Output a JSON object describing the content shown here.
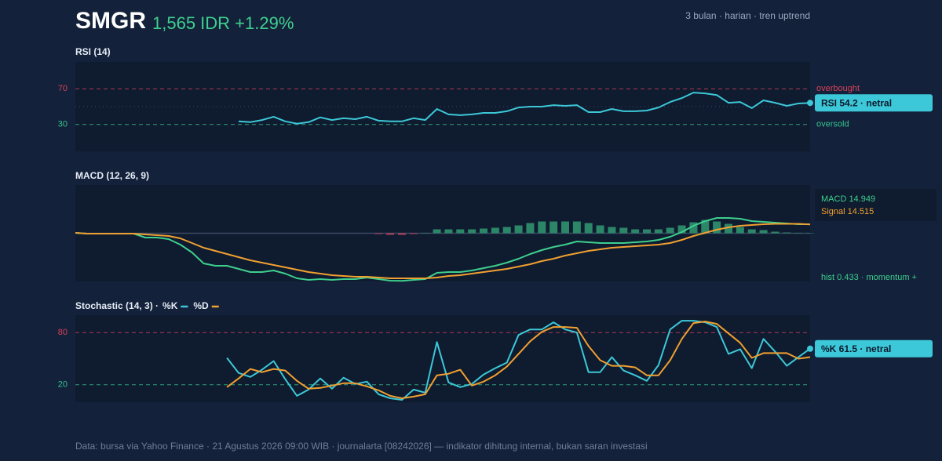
{
  "header": {
    "ticker": "SMGR",
    "quote": "1,565 IDR +1.29%",
    "meta": "3 bulan · harian · tren uptrend"
  },
  "chart_data": [
    {
      "type": "line",
      "title": "RSI (14)",
      "ylim": [
        0,
        100
      ],
      "yticks": [
        70,
        30
      ],
      "tick_colors": [
        "#d9415a",
        "#34c38f"
      ],
      "threshold_labels": [
        "overbought",
        "oversold"
      ],
      "midline": 50,
      "series": [
        {
          "color": "#3cc8d8",
          "values": [
            null,
            null,
            null,
            null,
            null,
            null,
            null,
            null,
            null,
            null,
            null,
            null,
            null,
            null,
            33.5,
            32.6,
            35,
            38.7,
            33.5,
            31,
            32.6,
            38,
            35,
            37,
            36,
            38.7,
            34.3,
            33.5,
            33.5,
            37,
            35,
            47.4,
            41.3,
            40.4,
            41.3,
            43,
            43,
            44.8,
            49,
            50,
            50,
            51.7,
            50.9,
            51.7,
            43.9,
            43.9,
            47.4,
            44.8,
            44.8,
            45.6,
            49,
            55.2,
            59.6,
            65.7,
            64.8,
            63,
            54.3,
            55.2,
            48.3,
            57,
            54.3,
            50.9,
            53.5,
            54.2
          ]
        }
      ],
      "badge": "RSI 54.2 · netral"
    },
    {
      "type": "macd",
      "title": "MACD (12, 26, 9)",
      "ylim": [
        -80,
        80
      ],
      "series": [
        {
          "color": "#3ecf8e",
          "values": [
            0.7,
            -0.7,
            -0.7,
            -0.7,
            -0.7,
            -0.7,
            -7.2,
            -7.2,
            -9.8,
            -18.9,
            -31.9,
            -50.1,
            -54,
            -54,
            -59.2,
            -64.4,
            -64.4,
            -61.8,
            -67,
            -74.8,
            -77.4,
            -76.1,
            -77.4,
            -76.1,
            -76.1,
            -73.5,
            -76.1,
            -78.7,
            -79,
            -77.4,
            -76.1,
            -65.7,
            -64.4,
            -64.4,
            -61.8,
            -57.9,
            -54,
            -48.8,
            -42.3,
            -34.5,
            -28,
            -22.8,
            -18.9,
            -13.7,
            -15,
            -16.3,
            -16.3,
            -16.3,
            -15,
            -13.7,
            -11.1,
            -5.9,
            2,
            12.4,
            20.2,
            25.4,
            25.4,
            24.1,
            20.2,
            18.9,
            17.6,
            16.3,
            15,
            14.949
          ]
        },
        {
          "color": "#f0a030",
          "values": [
            0.7,
            -0.7,
            -0.7,
            -0.7,
            -0.7,
            -0.7,
            -2,
            -3.3,
            -4.6,
            -8.5,
            -16.3,
            -24.1,
            -29.3,
            -34.5,
            -39.7,
            -44.9,
            -48.8,
            -52.7,
            -56.6,
            -60.5,
            -64.4,
            -67,
            -69.6,
            -70.9,
            -72.2,
            -72.2,
            -73.5,
            -74.8,
            -74.8,
            -74.8,
            -74.8,
            -73.5,
            -70.9,
            -69.6,
            -67,
            -64.4,
            -61.8,
            -59.2,
            -55.3,
            -51.4,
            -46.2,
            -42.3,
            -37.1,
            -33.2,
            -29.3,
            -26.7,
            -24.1,
            -22.8,
            -21.5,
            -20.2,
            -18.9,
            -16.3,
            -11.1,
            -4.6,
            0.7,
            5.9,
            9.8,
            12.4,
            13.7,
            15,
            15.6,
            15.6,
            15.6,
            14.515
          ]
        }
      ],
      "histogram": {
        "colors": [
          "#2c8768",
          "#b3405a"
        ],
        "values": [
          null,
          null,
          null,
          null,
          null,
          null,
          null,
          null,
          null,
          null,
          null,
          null,
          null,
          null,
          null,
          null,
          null,
          null,
          null,
          null,
          null,
          null,
          null,
          null,
          null,
          null,
          -1.3,
          -2.6,
          -2.6,
          -1.3,
          0.7,
          6.5,
          6.5,
          6.5,
          6.5,
          7.8,
          9.1,
          10.4,
          13,
          16.9,
          19.5,
          19.5,
          19.5,
          19.5,
          16.9,
          13,
          10.4,
          9.1,
          6.5,
          6.5,
          6.5,
          9.1,
          13,
          18.2,
          22.1,
          19.5,
          15.6,
          10.4,
          6.5,
          5.2,
          2.6,
          1.3,
          0.7,
          0.433
        ]
      },
      "annotations": [
        "MACD 14.949",
        "Signal 14.515",
        "hist 0.433 · momentum +"
      ]
    },
    {
      "type": "line",
      "title": "Stochastic (14, 3) ·",
      "ylim": [
        0,
        100
      ],
      "yticks": [
        80,
        20
      ],
      "tick_colors": [
        "#d9415a",
        "#34c38f"
      ],
      "series": [
        {
          "name": "%K",
          "color": "#3cc8d8",
          "values": [
            null,
            null,
            null,
            null,
            null,
            null,
            null,
            null,
            null,
            null,
            null,
            null,
            null,
            50.9,
            33.6,
            29,
            37.3,
            47.3,
            26.4,
            7.3,
            14.5,
            27.3,
            15.5,
            28.2,
            20.9,
            23.6,
            9.1,
            4.5,
            2.7,
            14.5,
            10.9,
            69.1,
            22.7,
            17.3,
            20.9,
            31.8,
            39.1,
            45.5,
            77.3,
            83.6,
            83.6,
            91.8,
            83.6,
            80,
            34.5,
            34.5,
            51.8,
            36.4,
            30.9,
            24.5,
            42.7,
            83.6,
            93.6,
            93.6,
            91.8,
            86.4,
            55.5,
            60.9,
            39.1,
            72.7,
            58.2,
            41.8,
            51.8,
            61.5
          ]
        },
        {
          "name": "%D",
          "color": "#f0a030",
          "values": [
            null,
            null,
            null,
            null,
            null,
            null,
            null,
            null,
            null,
            null,
            null,
            null,
            null,
            17.3,
            27.3,
            38.2,
            34.5,
            38.2,
            36.4,
            24.5,
            15.5,
            16.4,
            19.1,
            21.8,
            21.8,
            18.2,
            13.6,
            7.3,
            4.5,
            6.4,
            9.1,
            30.9,
            32.7,
            37.3,
            19.1,
            23.6,
            30.9,
            40.9,
            55.5,
            70,
            80.9,
            86.4,
            86.4,
            85.5,
            64.5,
            48.2,
            41.8,
            41.8,
            40,
            30.9,
            30.9,
            48.2,
            72.7,
            90.9,
            92.7,
            90,
            79.1,
            68.2,
            50.9,
            56.4,
            56.4,
            56.4,
            50,
            51.8
          ]
        }
      ],
      "badge": "%K 61.5 · netral"
    }
  ],
  "footer": "Data: bursa via Yahoo Finance · 21 Agustus 2026 09:00 WIB · journalarta [08242026] — indikator dihitung internal, bukan saran investasi"
}
